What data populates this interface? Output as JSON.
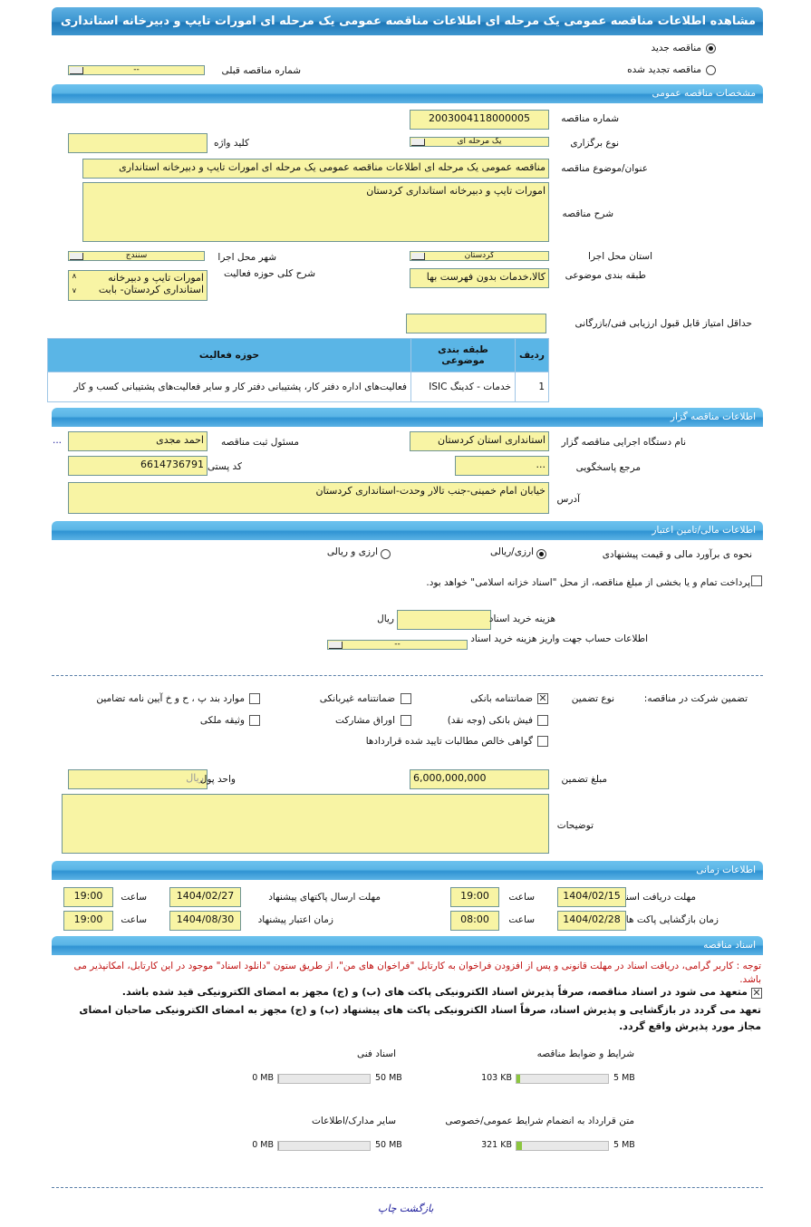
{
  "title": "مشاهده اطلاعات مناقصه عمومی یک مرحله ای اطلاعات مناقصه عمومی یک مرحله ای امورات تایپ و دبیرخانه استانداری کردستان",
  "tender_type": {
    "new_label": "مناقصه جدید",
    "renewed_label": "مناقصه تجدید شده",
    "selected": "new",
    "prev_number_label": "شماره مناقصه قبلی",
    "prev_number_value": "--"
  },
  "sections": {
    "general": "مشخصات مناقصه عمومی",
    "organizer": "اطلاعات مناقصه گزار",
    "financial": "اطلاعات مالی/تامین اعتبار",
    "timing": "اطلاعات زمانی",
    "documents": "اسناد مناقصه"
  },
  "general": {
    "number_label": "شماره مناقصه",
    "number": "2003004118000005",
    "method_label": "نوع برگزاری",
    "method": "یک مرحله ای",
    "keyword_label": "کلید واژه",
    "keyword": "",
    "subject_label": "عنوان/موضوع مناقصه",
    "subject": "مناقصه عمومی یک مرحله ای اطلاعات مناقصه عمومی یک مرحله ای امورات تایپ و دبیرخانه استانداری",
    "desc_label": "شرح مناقصه",
    "desc": "امورات تایپ و دبیرخانه استانداری کردستان",
    "city_label": "شهر محل اجرا",
    "city": "سنندج",
    "province_label": "استان محل اجرا",
    "province": "کردستان",
    "activity_label": "شرح کلی حوزه فعالیت",
    "activity_line1": "امورات تایپ و دبیرخانه",
    "activity_line2": "استانداری کردستان- بابت",
    "category_label": "طبقه بندی موضوعی",
    "category": "کالا،خدمات بدون فهرست بها",
    "min_score_label": "حداقل امتیاز قابل قبول ارزیابی فنی/بازرگانی",
    "min_score": "",
    "table": {
      "headers": [
        "ردیف",
        "طبقه بندی موضوعی",
        "حوزه فعالیت"
      ],
      "rows": [
        [
          "1",
          "خدمات - کدینگ ISIC",
          "فعالیت‌های اداره دفتر کار، پشتیبانی دفتر کار و سایر فعالیت‌های پشتیبانی کسب و کار"
        ]
      ]
    }
  },
  "organizer": {
    "org_label": "نام دستگاه اجرایی مناقصه گزار",
    "org": "استانداری استان کردستان",
    "registrar_label": "مسئول ثبت مناقصه",
    "registrar": "احمد مجدی",
    "more": "...",
    "ref_label": "مرجع پاسخگویی",
    "ref": "...",
    "postal_label": "کد پستی",
    "postal": "6614736791",
    "address_label": "آدرس",
    "address": "خیابان امام خمینی-جنب تالار وحدت-استانداری کردستان"
  },
  "financial": {
    "estimate_label": "نحوه ی برآورد مالی و قیمت پیشنهادی",
    "opt1": "ارزی/ریالی",
    "opt2": "ارزی و ریالی",
    "selected": "opt1",
    "treasury_label": "پرداخت تمام و یا بخشی از مبلغ مناقصه، از محل \"اسناد خزانه اسلامی\" خواهد بود.",
    "treasury_checked": false,
    "doc_cost_label": "هزینه خرید اسناد",
    "doc_cost": "",
    "currency": "ریال",
    "account_label": "اطلاعات حساب جهت واریز هزینه خرید اسناد",
    "account": "--",
    "guarantee_label": "تضمین شرکت در مناقصه:",
    "guarantee_type_label": "نوع تضمین",
    "guarantees": [
      {
        "label": "ضمانتنامه بانکی",
        "checked": true
      },
      {
        "label": "ضمانتنامه غیربانکی",
        "checked": false
      },
      {
        "label": "موارد بند پ ، ح و خ آیین نامه تضامین",
        "checked": false
      },
      {
        "label": "فیش بانکی (وجه نقد)",
        "checked": false
      },
      {
        "label": "اوراق مشارکت",
        "checked": false
      },
      {
        "label": "وثیقه ملکی",
        "checked": false
      },
      {
        "label": "گواهی خالص مطالبات تایید شده قراردادها",
        "checked": false
      }
    ],
    "amount_label": "مبلغ تضمین",
    "amount": "6,000,000,000",
    "unit_label": "واحد پول",
    "unit": "ریال",
    "notes_label": "توضیحات",
    "notes": ""
  },
  "timing": {
    "hour_label": "ساعت",
    "doc_deadline_label": "مهلت دریافت اسناد",
    "doc_deadline": "1404/02/15",
    "doc_deadline_time": "19:00",
    "submit_label": "مهلت ارسال پاکتهای پیشنهاد",
    "submit": "1404/02/27",
    "submit_time": "19:00",
    "opening_label": "زمان بازگشایی پاکت ها",
    "opening": "1404/02/28",
    "opening_time": "08:00",
    "validity_label": "زمان اعتبار پیشنهاد",
    "validity": "1404/08/30",
    "validity_time": "19:00"
  },
  "documents": {
    "note": "توجه : کاربر گرامی، دریافت اسناد در مهلت قانونی و پس از افزودن فراخوان به کارتابل \"فراخوان های من\"، از طریق ستون \"دانلود اسناد\" موجود در این کارتابل، امکانپذیر می باشد.",
    "commit1": "متعهد می شود در اسناد مناقصه، صرفاً پذیرش اسناد الکترونیکی پاکت های (ب) و (ج) مجهز به امضای الکترونیکی قید شده باشد.",
    "commit2": "تعهد می گردد در بازگشایی و پذیرش اسناد، صرفاً اسناد الکترونیکی پاکت های پیشنهاد (ب) و (ج) مجهز به امضای الکترونیکی صاحبان امضای مجاز مورد پذیرش واقع گردد.",
    "files": [
      {
        "label": "شرایط و ضوابط مناقصه",
        "size": "103 KB",
        "max": "5 MB",
        "fraction": 0.02
      },
      {
        "label": "اسناد فنی",
        "size": "0 MB",
        "max": "50 MB",
        "fraction": 0
      },
      {
        "label": "متن قرارداد به انضمام شرایط عمومی/خصوصی",
        "size": "321 KB",
        "max": "5 MB",
        "fraction": 0.063
      },
      {
        "label": "سایر مدارک/اطلاعات",
        "size": "0 MB",
        "max": "50 MB",
        "fraction": 0
      }
    ]
  },
  "footer": {
    "print": "چاپ",
    "back": "بازگشت"
  },
  "colors": {
    "header": "#3b95d0",
    "input_bg": "#f8f4a4",
    "progress": "#8cc63f",
    "note": "#c01010"
  }
}
